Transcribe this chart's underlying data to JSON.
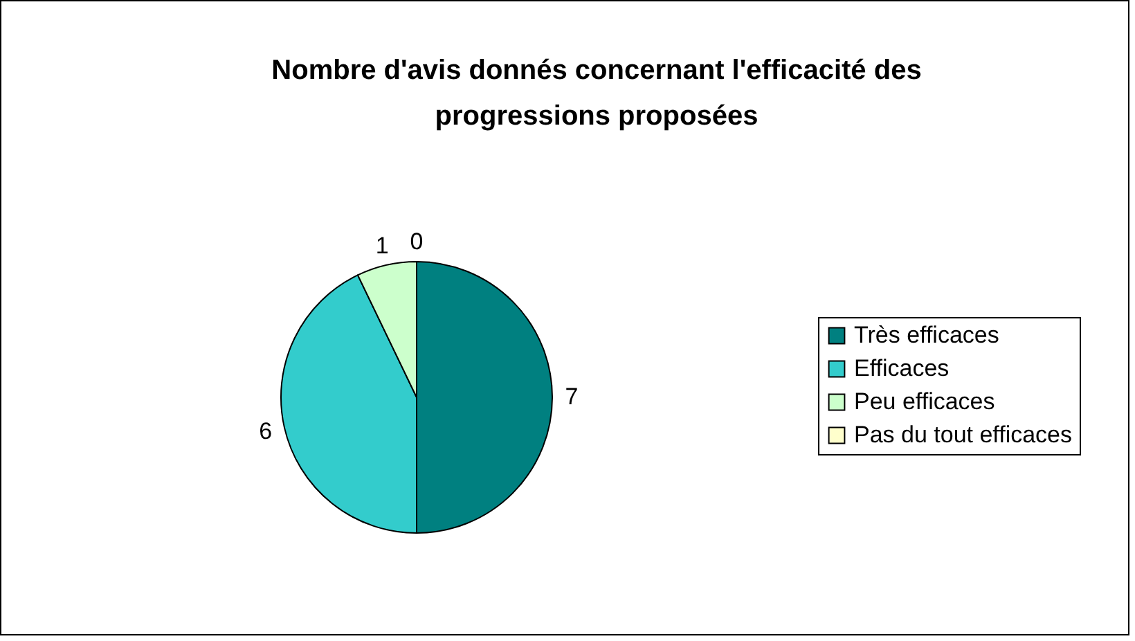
{
  "chart_data": {
    "type": "pie",
    "title": "Nombre d'avis donnés concernant l'efficacité des progressions proposées",
    "categories": [
      "Très efficaces",
      "Efficaces",
      "Peu efficaces",
      "Pas du tout efficaces"
    ],
    "values": [
      7,
      6,
      1,
      0
    ],
    "colors": [
      "#008080",
      "#33cccc",
      "#ccffcc",
      "#ffffcc"
    ],
    "value_labels": [
      "7",
      "6",
      "1",
      "0"
    ],
    "legend": "right"
  }
}
